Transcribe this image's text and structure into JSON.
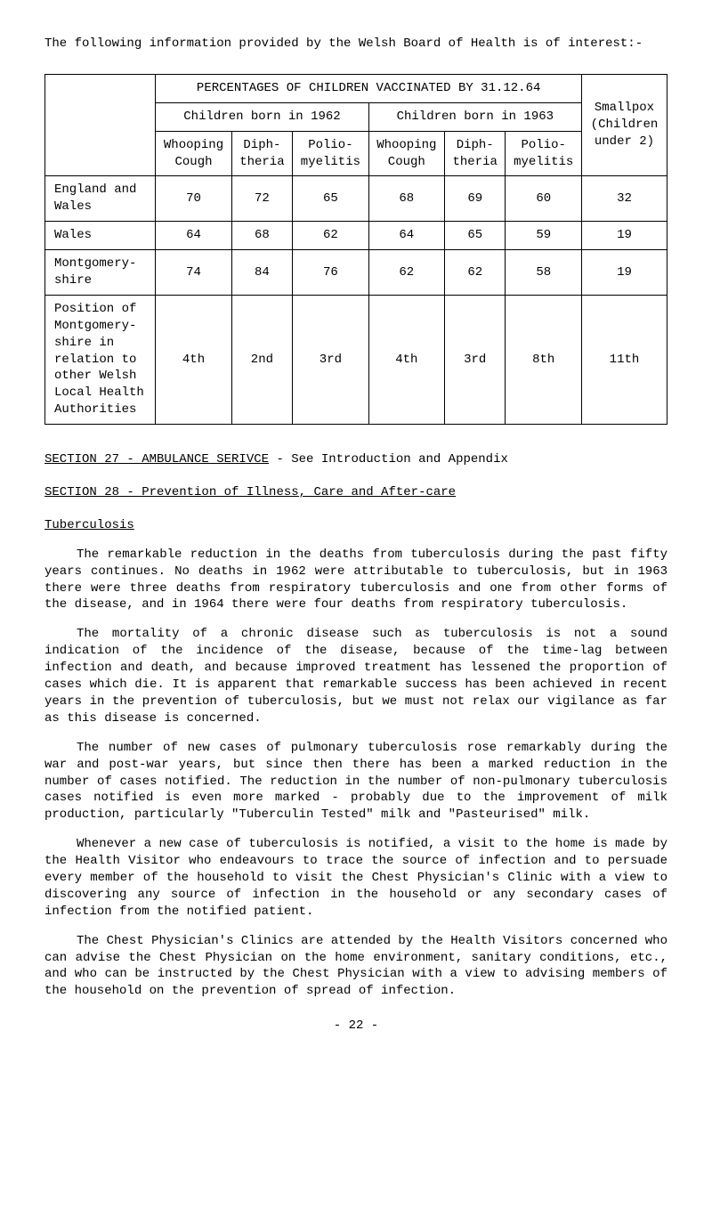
{
  "intro": "The following information provided by the Welsh Board of Health is of interest:-",
  "table": {
    "header_top_left": "PERCENTAGES OF CHILDREN VACCINATED BY 31.12.64",
    "header_left_sub": "Children born in 1962",
    "header_right_sub": "Children born in 1963",
    "header_smallpox": "Smallpox (Children under 2)",
    "sub_cols": {
      "c1": "Whooping Cough",
      "c2": "Diph- theria",
      "c3": "Polio- myelitis",
      "c4": "Whooping Cough",
      "c5": "Diph- theria",
      "c6": "Polio- myelitis"
    },
    "rows": [
      {
        "label": "England and Wales",
        "v": [
          "70",
          "72",
          "65",
          "68",
          "69",
          "60",
          "32"
        ]
      },
      {
        "label": "Wales",
        "v": [
          "64",
          "68",
          "62",
          "64",
          "65",
          "59",
          "19"
        ]
      },
      {
        "label": "Montgomery- shire",
        "v": [
          "74",
          "84",
          "76",
          "62",
          "62",
          "58",
          "19"
        ]
      },
      {
        "label": "Position of Montgomery- shire in relation to other Welsh Local Health Authorities",
        "v": [
          "4th",
          "2nd",
          "3rd",
          "4th",
          "3rd",
          "8th",
          "11th"
        ]
      }
    ]
  },
  "section27": {
    "label": "SECTION 27 - AMBULANCE SERIVCE",
    "rest": "     -   See Introduction and Appendix"
  },
  "section28": "SECTION 28 - Prevention of Illness, Care and After-care",
  "tuberculosis_heading": "Tuberculosis",
  "paragraphs": {
    "p1": "The remarkable reduction in the deaths from tuberculosis during the past fifty years continues.  No deaths in 1962 were attributable to tuberculosis, but in 1963 there were three deaths from respiratory tuberculosis and one from other forms of the disease, and in 1964 there were four deaths from respiratory tuberculosis.",
    "p2": "The mortality of a chronic disease such as tuberculosis is not a sound indication of the incidence of the disease, because of the time-lag between infection and death, and because improved treatment has lessened the proportion of cases which die.  It is apparent that remarkable success has been achieved in recent years in the prevention of tuberculosis, but we must not relax our vigilance as far as this disease is concerned.",
    "p3": "The number of new cases of pulmonary tuberculosis rose remarkably during the war and post-war years, but since then there has been a marked reduction in the number of cases notified.  The reduction in the number of non-pulmonary tuberculosis cases notified is even more marked - probably due to the improvement of milk production, particularly \"Tuberculin Tested\" milk and \"Pasteurised\" milk.",
    "p4": "Whenever a new case of tuberculosis is notified, a visit to the home is made by the Health Visitor who endeavours to trace the source of infection and to persuade every member of the household to visit the Chest Physician's Clinic with a view to discovering any source of infection in the household or any secondary cases of infection from the notified patient.",
    "p5": "The Chest Physician's Clinics are attended by the Health Visitors concerned who can advise the Chest Physician on the home environment, sanitary conditions, etc., and who can be instructed by the Chest Physician with a view to advising members of the household on the prevention of spread of infection."
  },
  "pagenum": "- 22 -"
}
